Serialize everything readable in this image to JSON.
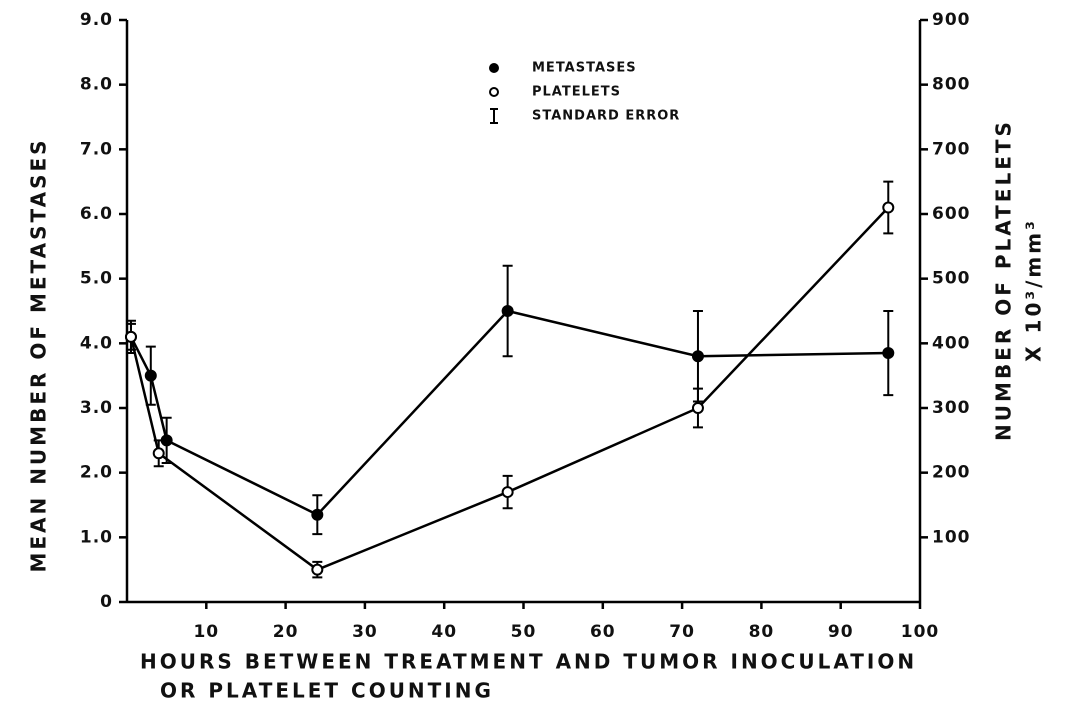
{
  "chart_data": {
    "type": "line",
    "xlabel": [
      "HOURS BETWEEN TREATMENT AND TUMOR INOCULATION",
      "OR PLATELET COUNTING"
    ],
    "ylabel": "MEAN NUMBER OF METASTASES",
    "y2label": [
      "NUMBER OF PLATELETS",
      "X 10³/mm³"
    ],
    "error_label": "STANDARD ERROR",
    "xlim": [
      0,
      100
    ],
    "xticks": [
      10,
      20,
      30,
      40,
      50,
      60,
      70,
      80,
      90,
      100
    ],
    "ylim": [
      0,
      9
    ],
    "yticks": [
      0,
      {
        "value": 1,
        "label": "1.0"
      },
      {
        "value": 2,
        "label": "2.0"
      },
      {
        "value": 3,
        "label": "3.0"
      },
      {
        "value": 4,
        "label": "4.0"
      },
      {
        "value": 5,
        "label": "5.0"
      },
      {
        "value": 6,
        "label": "6.0"
      },
      {
        "value": 7,
        "label": "7.0"
      },
      {
        "value": 8,
        "label": "8.0"
      },
      {
        "value": 9,
        "label": "9.0"
      }
    ],
    "y2lim": [
      0,
      900
    ],
    "y2ticks": [
      100,
      200,
      300,
      400,
      500,
      600,
      700,
      800,
      900
    ],
    "grid": false,
    "series": [
      {
        "name": "METASTASES",
        "color": "#000000",
        "marker": "filled",
        "x": [
          0.5,
          3,
          5,
          24,
          48,
          72,
          96
        ],
        "values": [
          4.1,
          3.5,
          2.5,
          1.35,
          4.5,
          3.8,
          3.85
        ],
        "errors": [
          0.25,
          0.45,
          0.35,
          0.3,
          0.7,
          0.7,
          0.65
        ]
      },
      {
        "name": "PLATELETS",
        "color": "#000000",
        "marker": "open",
        "axis": "y2",
        "x": [
          0.5,
          4,
          24,
          48,
          72,
          96
        ],
        "values": [
          410,
          230,
          50,
          170,
          300,
          610
        ],
        "errors": [
          20,
          20,
          12,
          25,
          30,
          40
        ]
      }
    ]
  }
}
